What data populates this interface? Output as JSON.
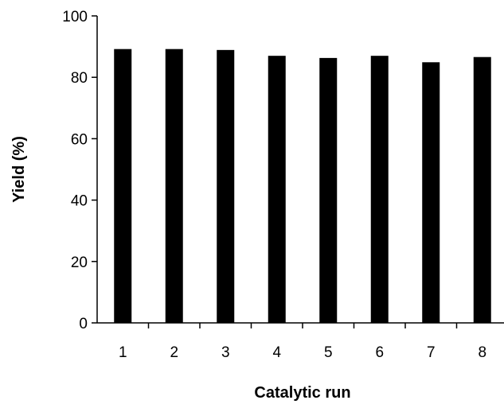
{
  "chart_data": {
    "type": "bar",
    "title": "",
    "xlabel": "Catalytic run",
    "ylabel": "Yield (%)",
    "categories": [
      "1",
      "2",
      "3",
      "4",
      "5",
      "6",
      "7",
      "8"
    ],
    "values": [
      89.2,
      89.2,
      88.9,
      87.0,
      86.3,
      87.0,
      84.9,
      86.6
    ],
    "ylim": [
      0,
      100
    ],
    "yticks": [
      "0",
      "20",
      "40",
      "60",
      "80",
      "100"
    ],
    "bar_color": "#000000",
    "grid": false,
    "legend": "none"
  }
}
